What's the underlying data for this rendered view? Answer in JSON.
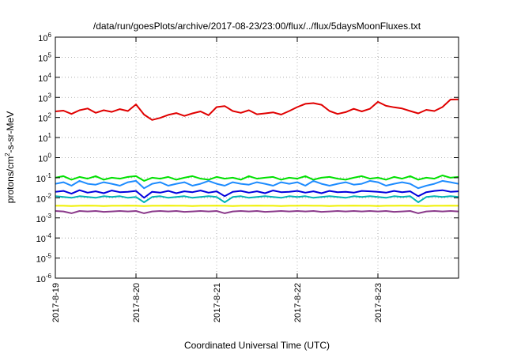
{
  "chart_data": {
    "type": "line",
    "title": "/data/run/goesPlots/archive/2017-08-23/23:00/flux/../flux/5daysMoonFluxes.txt",
    "xlabel": "Coordinated Universal Time (UTC)",
    "ylabel": {
      "pre": "protons/cm",
      "sup": "2",
      "post": "-s-sr-MeV"
    },
    "y_scale": "log",
    "ylim": [
      1e-06,
      1000000.0
    ],
    "xlim": [
      0,
      5
    ],
    "x_unit": "days since 2017-08-19 00:00 UTC",
    "grid": true,
    "x_ticks": [
      {
        "value": 0,
        "label": "2017-8-19"
      },
      {
        "value": 1,
        "label": "2017-8-20"
      },
      {
        "value": 2,
        "label": "2017-8-21"
      },
      {
        "value": 3,
        "label": "2017-8-22"
      },
      {
        "value": 4,
        "label": "2017-8-23"
      }
    ],
    "y_ticks": [
      {
        "value": -6,
        "base": "10",
        "exp": "-6"
      },
      {
        "value": -5,
        "base": "10",
        "exp": "-5"
      },
      {
        "value": -4,
        "base": "10",
        "exp": "-4"
      },
      {
        "value": -3,
        "base": "10",
        "exp": "-3"
      },
      {
        "value": -2,
        "base": "10",
        "exp": "-2"
      },
      {
        "value": -1,
        "base": "10",
        "exp": "-1"
      },
      {
        "value": 0,
        "base": "10",
        "exp": "0"
      },
      {
        "value": 1,
        "base": "10",
        "exp": "1"
      },
      {
        "value": 2,
        "base": "10",
        "exp": "2"
      },
      {
        "value": 3,
        "base": "10",
        "exp": "3"
      },
      {
        "value": 4,
        "base": "10",
        "exp": "4"
      },
      {
        "value": 5,
        "base": "10",
        "exp": "5"
      },
      {
        "value": 6,
        "base": "10",
        "exp": "6"
      }
    ],
    "series": [
      {
        "color": "#e00000",
        "width": 2,
        "x": [
          0,
          0.1,
          0.2,
          0.3,
          0.4,
          0.5,
          0.6,
          0.7,
          0.8,
          0.9,
          1.0,
          1.1,
          1.2,
          1.3,
          1.4,
          1.5,
          1.6,
          1.7,
          1.8,
          1.9,
          2.0,
          2.1,
          2.2,
          2.3,
          2.4,
          2.5,
          2.6,
          2.7,
          2.8,
          2.9,
          3.0,
          3.1,
          3.2,
          3.3,
          3.4,
          3.5,
          3.6,
          3.7,
          3.8,
          3.9,
          4.0,
          4.1,
          4.2,
          4.3,
          4.4,
          4.5,
          4.6,
          4.7,
          4.8,
          4.9,
          5.0
        ],
        "y": [
          200,
          220,
          150,
          230,
          280,
          170,
          230,
          190,
          260,
          210,
          450,
          140,
          75,
          95,
          135,
          165,
          120,
          160,
          200,
          130,
          330,
          370,
          210,
          170,
          230,
          145,
          160,
          180,
          140,
          210,
          330,
          480,
          520,
          430,
          210,
          150,
          185,
          270,
          200,
          270,
          600,
          380,
          320,
          280,
          210,
          160,
          240,
          210,
          330,
          780,
          800
        ]
      },
      {
        "color": "#00e000",
        "width": 2,
        "x": [
          0,
          0.1,
          0.2,
          0.3,
          0.4,
          0.5,
          0.6,
          0.7,
          0.8,
          0.9,
          1.0,
          1.1,
          1.2,
          1.3,
          1.4,
          1.5,
          1.6,
          1.7,
          1.8,
          1.9,
          2.0,
          2.1,
          2.2,
          2.3,
          2.4,
          2.5,
          2.6,
          2.7,
          2.8,
          2.9,
          3.0,
          3.1,
          3.2,
          3.3,
          3.4,
          3.5,
          3.6,
          3.7,
          3.8,
          3.9,
          4.0,
          4.1,
          4.2,
          4.3,
          4.4,
          4.5,
          4.6,
          4.7,
          4.8,
          4.9,
          5.0
        ],
        "y": [
          0.1,
          0.12,
          0.08,
          0.11,
          0.09,
          0.12,
          0.08,
          0.1,
          0.09,
          0.11,
          0.12,
          0.07,
          0.1,
          0.09,
          0.11,
          0.08,
          0.1,
          0.12,
          0.09,
          0.08,
          0.11,
          0.09,
          0.1,
          0.08,
          0.12,
          0.09,
          0.1,
          0.11,
          0.08,
          0.1,
          0.09,
          0.12,
          0.08,
          0.1,
          0.11,
          0.09,
          0.08,
          0.1,
          0.12,
          0.09,
          0.1,
          0.08,
          0.11,
          0.09,
          0.12,
          0.08,
          0.1,
          0.09,
          0.13,
          0.1,
          0.11
        ]
      },
      {
        "color": "#1e8cff",
        "width": 2,
        "x": [
          0,
          0.1,
          0.2,
          0.3,
          0.4,
          0.5,
          0.6,
          0.7,
          0.8,
          0.9,
          1.0,
          1.1,
          1.2,
          1.3,
          1.4,
          1.5,
          1.6,
          1.7,
          1.8,
          1.9,
          2.0,
          2.1,
          2.2,
          2.3,
          2.4,
          2.5,
          2.6,
          2.7,
          2.8,
          2.9,
          3.0,
          3.1,
          3.2,
          3.3,
          3.4,
          3.5,
          3.6,
          3.7,
          3.8,
          3.9,
          4.0,
          4.1,
          4.2,
          4.3,
          4.4,
          4.5,
          4.6,
          4.7,
          4.8,
          4.9,
          5.0
        ],
        "y": [
          0.05,
          0.06,
          0.04,
          0.07,
          0.05,
          0.045,
          0.06,
          0.05,
          0.04,
          0.06,
          0.07,
          0.03,
          0.05,
          0.06,
          0.04,
          0.05,
          0.06,
          0.04,
          0.05,
          0.07,
          0.05,
          0.04,
          0.06,
          0.05,
          0.045,
          0.06,
          0.05,
          0.04,
          0.06,
          0.05,
          0.06,
          0.04,
          0.07,
          0.05,
          0.04,
          0.05,
          0.06,
          0.045,
          0.05,
          0.07,
          0.06,
          0.04,
          0.05,
          0.06,
          0.05,
          0.03,
          0.04,
          0.05,
          0.07,
          0.06,
          0.05
        ]
      },
      {
        "color": "#00b4b4",
        "width": 2,
        "x": [
          0,
          0.1,
          0.2,
          0.3,
          0.4,
          0.5,
          0.6,
          0.7,
          0.8,
          0.9,
          1.0,
          1.1,
          1.2,
          1.3,
          1.4,
          1.5,
          1.6,
          1.7,
          1.8,
          1.9,
          2.0,
          2.1,
          2.2,
          2.3,
          2.4,
          2.5,
          2.6,
          2.7,
          2.8,
          2.9,
          3.0,
          3.1,
          3.2,
          3.3,
          3.4,
          3.5,
          3.6,
          3.7,
          3.8,
          3.9,
          4.0,
          4.1,
          4.2,
          4.3,
          4.4,
          4.5,
          4.6,
          4.7,
          4.8,
          4.9,
          5.0
        ],
        "y": [
          0.012,
          0.011,
          0.01,
          0.012,
          0.011,
          0.01,
          0.012,
          0.011,
          0.012,
          0.01,
          0.011,
          0.006,
          0.011,
          0.012,
          0.01,
          0.011,
          0.012,
          0.01,
          0.011,
          0.012,
          0.011,
          0.006,
          0.011,
          0.012,
          0.01,
          0.011,
          0.012,
          0.011,
          0.01,
          0.012,
          0.011,
          0.012,
          0.01,
          0.011,
          0.012,
          0.011,
          0.01,
          0.012,
          0.011,
          0.012,
          0.011,
          0.01,
          0.012,
          0.011,
          0.012,
          0.006,
          0.011,
          0.012,
          0.011,
          0.012,
          0.011
        ]
      },
      {
        "color": "#0000dd",
        "width": 2,
        "x": [
          0,
          0.1,
          0.2,
          0.3,
          0.4,
          0.5,
          0.6,
          0.7,
          0.8,
          0.9,
          1.0,
          1.1,
          1.2,
          1.3,
          1.4,
          1.5,
          1.6,
          1.7,
          1.8,
          1.9,
          2.0,
          2.1,
          2.2,
          2.3,
          2.4,
          2.5,
          2.6,
          2.7,
          2.8,
          2.9,
          3.0,
          3.1,
          3.2,
          3.3,
          3.4,
          3.5,
          3.6,
          3.7,
          3.8,
          3.9,
          4.0,
          4.1,
          4.2,
          4.3,
          4.4,
          4.5,
          4.6,
          4.7,
          4.8,
          4.9,
          5.0
        ],
        "y": [
          0.02,
          0.022,
          0.016,
          0.024,
          0.018,
          0.021,
          0.017,
          0.023,
          0.019,
          0.02,
          0.022,
          0.01,
          0.02,
          0.018,
          0.022,
          0.017,
          0.021,
          0.019,
          0.023,
          0.018,
          0.021,
          0.012,
          0.02,
          0.022,
          0.018,
          0.021,
          0.017,
          0.023,
          0.019,
          0.02,
          0.022,
          0.018,
          0.021,
          0.017,
          0.022,
          0.019,
          0.02,
          0.018,
          0.022,
          0.021,
          0.02,
          0.018,
          0.022,
          0.019,
          0.021,
          0.012,
          0.019,
          0.022,
          0.024,
          0.02,
          0.021
        ]
      },
      {
        "color": "#f0f000",
        "width": 2,
        "x": [
          0,
          0.1,
          0.2,
          0.3,
          0.4,
          0.5,
          0.6,
          0.7,
          0.8,
          0.9,
          1.0,
          1.1,
          1.2,
          1.3,
          1.4,
          1.5,
          1.6,
          1.7,
          1.8,
          1.9,
          2.0,
          2.1,
          2.2,
          2.3,
          2.4,
          2.5,
          2.6,
          2.7,
          2.8,
          2.9,
          3.0,
          3.1,
          3.2,
          3.3,
          3.4,
          3.5,
          3.6,
          3.7,
          3.8,
          3.9,
          4.0,
          4.1,
          4.2,
          4.3,
          4.4,
          4.5,
          4.6,
          4.7,
          4.8,
          4.9,
          5.0
        ],
        "y": [
          0.004,
          0.004,
          0.0039,
          0.004,
          0.0041,
          0.004,
          0.0039,
          0.004,
          0.004,
          0.0041,
          0.004,
          0.0039,
          0.004,
          0.004,
          0.0041,
          0.004,
          0.004,
          0.0039,
          0.004,
          0.004,
          0.0041,
          0.004,
          0.0039,
          0.004,
          0.004,
          0.0041,
          0.004,
          0.004,
          0.0039,
          0.004,
          0.004,
          0.0041,
          0.004,
          0.004,
          0.0039,
          0.004,
          0.004,
          0.0041,
          0.004,
          0.004,
          0.0039,
          0.004,
          0.004,
          0.0041,
          0.004,
          0.004,
          0.0039,
          0.004,
          0.004,
          0.0041,
          0.004
        ]
      },
      {
        "color": "#8b3a8b",
        "width": 2,
        "x": [
          0,
          0.1,
          0.2,
          0.3,
          0.4,
          0.5,
          0.6,
          0.7,
          0.8,
          0.9,
          1.0,
          1.1,
          1.2,
          1.3,
          1.4,
          1.5,
          1.6,
          1.7,
          1.8,
          1.9,
          2.0,
          2.1,
          2.2,
          2.3,
          2.4,
          2.5,
          2.6,
          2.7,
          2.8,
          2.9,
          3.0,
          3.1,
          3.2,
          3.3,
          3.4,
          3.5,
          3.6,
          3.7,
          3.8,
          3.9,
          4.0,
          4.1,
          4.2,
          4.3,
          4.4,
          4.5,
          4.6,
          4.7,
          4.8,
          4.9,
          5.0
        ],
        "y": [
          0.0022,
          0.0021,
          0.0017,
          0.0022,
          0.0021,
          0.0022,
          0.002,
          0.0021,
          0.0022,
          0.0021,
          0.0022,
          0.0017,
          0.0021,
          0.0022,
          0.0021,
          0.0022,
          0.002,
          0.0021,
          0.0022,
          0.0021,
          0.0022,
          0.0017,
          0.0021,
          0.0022,
          0.0021,
          0.0022,
          0.002,
          0.0021,
          0.0022,
          0.0021,
          0.0022,
          0.0021,
          0.0022,
          0.002,
          0.0021,
          0.0022,
          0.0021,
          0.0022,
          0.0021,
          0.0022,
          0.0021,
          0.0022,
          0.002,
          0.0021,
          0.0022,
          0.0017,
          0.0021,
          0.0022,
          0.0021,
          0.0022,
          0.0021
        ]
      }
    ]
  }
}
